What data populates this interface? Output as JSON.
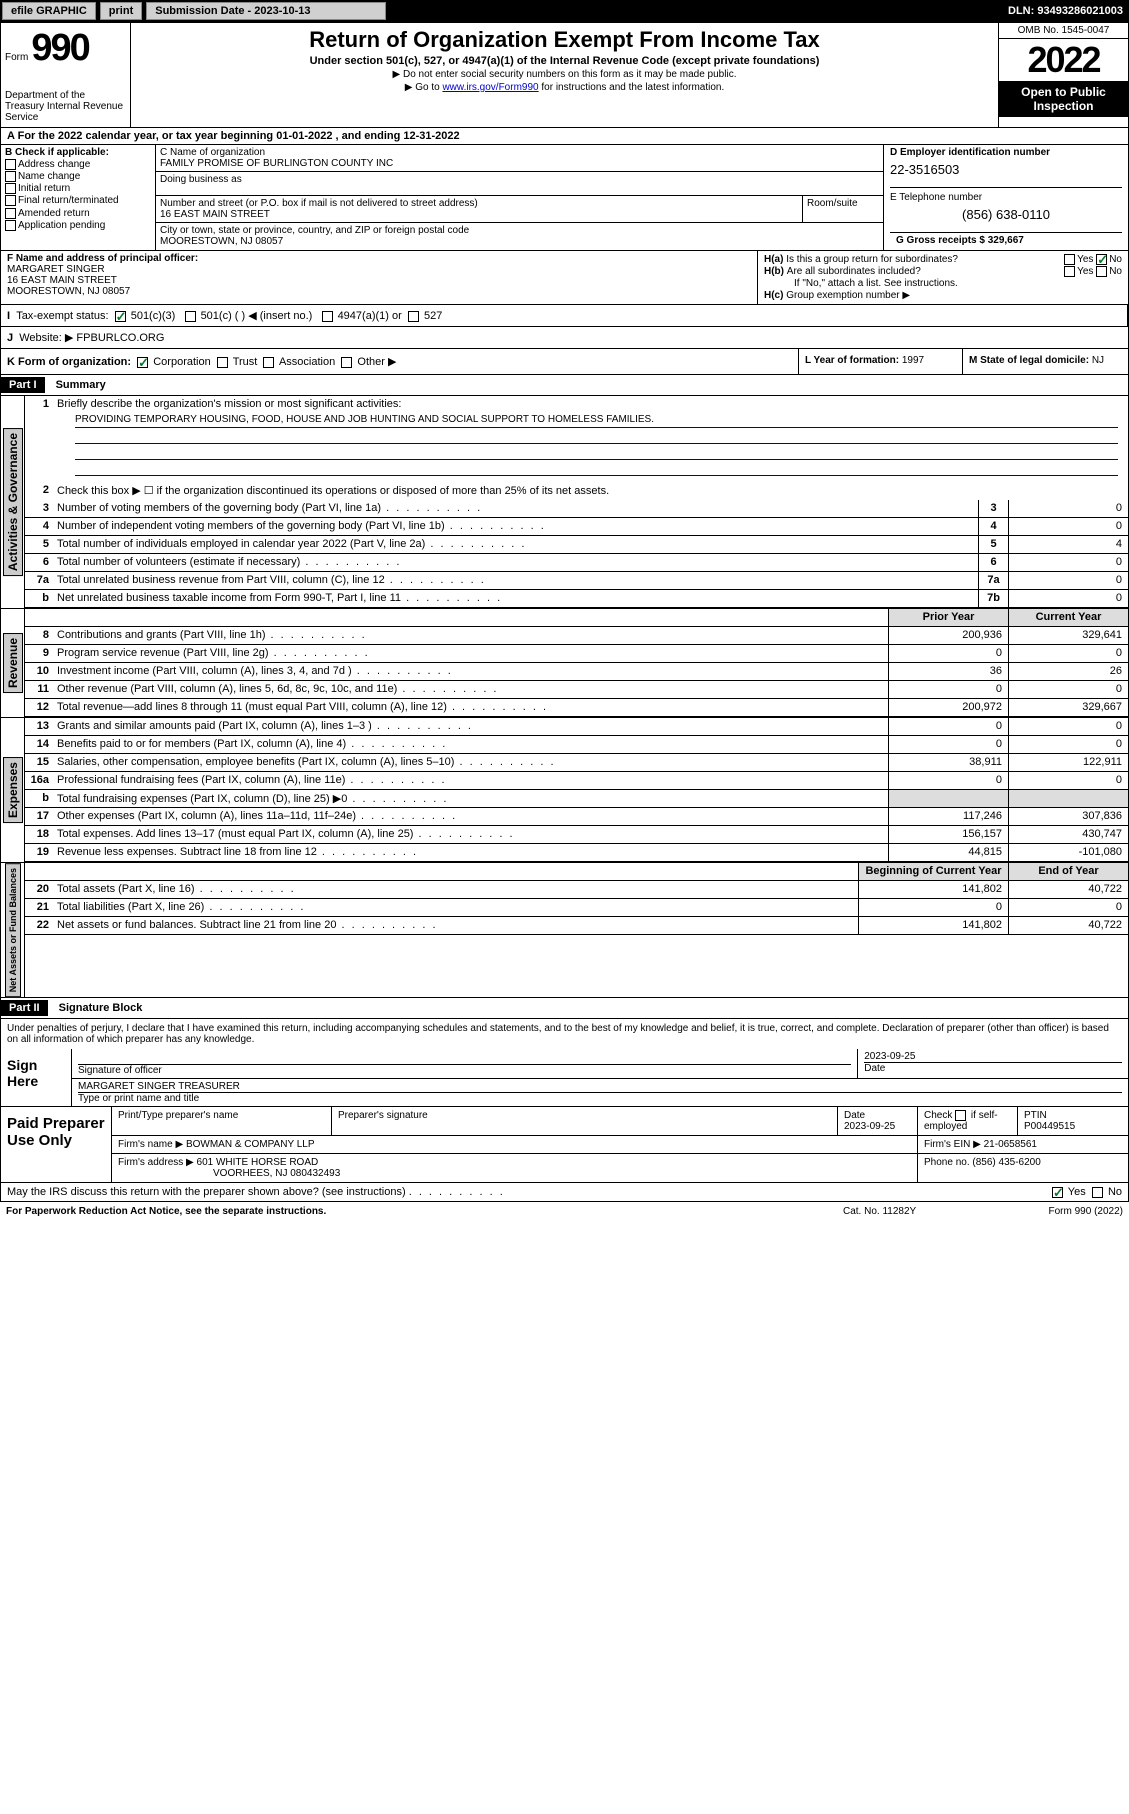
{
  "topbar": {
    "efile": "efile GRAPHIC",
    "print": "print",
    "submission_label": "Submission Date - 2023-10-13",
    "dln": "DLN: 93493286021003"
  },
  "header": {
    "form_word": "Form",
    "form_num": "990",
    "dept": "Department of the Treasury Internal Revenue Service",
    "title": "Return of Organization Exempt From Income Tax",
    "subtitle": "Under section 501(c), 527, or 4947(a)(1) of the Internal Revenue Code (except private foundations)",
    "note1": "Do not enter social security numbers on this form as it may be made public.",
    "note2_pre": "Go to ",
    "note2_link": "www.irs.gov/Form990",
    "note2_post": " for instructions and the latest information.",
    "omb": "OMB No. 1545-0047",
    "year": "2022",
    "open": "Open to Public Inspection"
  },
  "a": {
    "text_pre": "For the 2022 calendar year, or tax year beginning ",
    "begin": "01-01-2022",
    "mid": " , and ending ",
    "end": "12-31-2022"
  },
  "b": {
    "label": "B Check if applicable:",
    "opts": [
      "Address change",
      "Name change",
      "Initial return",
      "Final return/terminated",
      "Amended return",
      "Application pending"
    ]
  },
  "c": {
    "name_label": "C Name of organization",
    "name": "FAMILY PROMISE OF BURLINGTON COUNTY INC",
    "dba_label": "Doing business as",
    "street_label": "Number and street (or P.O. box if mail is not delivered to street address)",
    "street": "16 EAST MAIN STREET",
    "room_label": "Room/suite",
    "city_label": "City or town, state or province, country, and ZIP or foreign postal code",
    "city": "MOORESTOWN, NJ  08057"
  },
  "d": {
    "label": "D Employer identification number",
    "value": "22-3516503"
  },
  "e": {
    "label": "E Telephone number",
    "value": "(856) 638-0110"
  },
  "g": {
    "label": "G Gross receipts $",
    "value": "329,667"
  },
  "f": {
    "label": "F Name and address of principal officer:",
    "name": "MARGARET SINGER",
    "street": "16 EAST MAIN STREET",
    "city": "MOORESTOWN, NJ  08057"
  },
  "h": {
    "a": "Is this a group return for subordinates?",
    "a_yes": "Yes",
    "a_no": "No",
    "b": "Are all subordinates included?",
    "b_note": "If \"No,\" attach a list. See instructions.",
    "c": "Group exemption number ▶"
  },
  "i": {
    "label": "Tax-exempt status:",
    "opt1": "501(c)(3)",
    "opt2": "501(c) (   ) ◀ (insert no.)",
    "opt3": "4947(a)(1) or",
    "opt4": "527"
  },
  "j": {
    "label": "Website: ▶",
    "value": "FPBURLCO.ORG"
  },
  "k": {
    "label": "K Form of organization:",
    "opts": [
      "Corporation",
      "Trust",
      "Association",
      "Other ▶"
    ]
  },
  "l": {
    "label": "L Year of formation:",
    "value": "1997"
  },
  "m": {
    "label": "M State of legal domicile:",
    "value": "NJ"
  },
  "part1": {
    "hdr": "Part I",
    "title": "Summary"
  },
  "summary": {
    "line1_label": "Briefly describe the organization's mission or most significant activities:",
    "mission": "PROVIDING TEMPORARY HOUSING, FOOD, HOUSE AND JOB HUNTING AND SOCIAL SUPPORT TO HOMELESS FAMILIES.",
    "line2": "Check this box ▶ ☐ if the organization discontinued its operations or disposed of more than 25% of its net assets.",
    "lines": [
      {
        "n": "3",
        "t": "Number of voting members of the governing body (Part VI, line 1a)",
        "box": "3",
        "v": "0"
      },
      {
        "n": "4",
        "t": "Number of independent voting members of the governing body (Part VI, line 1b)",
        "box": "4",
        "v": "0"
      },
      {
        "n": "5",
        "t": "Total number of individuals employed in calendar year 2022 (Part V, line 2a)",
        "box": "5",
        "v": "4"
      },
      {
        "n": "6",
        "t": "Total number of volunteers (estimate if necessary)",
        "box": "6",
        "v": "0"
      },
      {
        "n": "7a",
        "t": "Total unrelated business revenue from Part VIII, column (C), line 12",
        "box": "7a",
        "v": "0"
      },
      {
        "n": "b",
        "t": "Net unrelated business taxable income from Form 990-T, Part I, line 11",
        "box": "7b",
        "v": "0"
      }
    ],
    "col_prior": "Prior Year",
    "col_current": "Current Year",
    "revenue": [
      {
        "n": "8",
        "t": "Contributions and grants (Part VIII, line 1h)",
        "p": "200,936",
        "c": "329,641"
      },
      {
        "n": "9",
        "t": "Program service revenue (Part VIII, line 2g)",
        "p": "0",
        "c": "0"
      },
      {
        "n": "10",
        "t": "Investment income (Part VIII, column (A), lines 3, 4, and 7d )",
        "p": "36",
        "c": "26"
      },
      {
        "n": "11",
        "t": "Other revenue (Part VIII, column (A), lines 5, 6d, 8c, 9c, 10c, and 11e)",
        "p": "0",
        "c": "0"
      },
      {
        "n": "12",
        "t": "Total revenue—add lines 8 through 11 (must equal Part VIII, column (A), line 12)",
        "p": "200,972",
        "c": "329,667"
      }
    ],
    "expenses": [
      {
        "n": "13",
        "t": "Grants and similar amounts paid (Part IX, column (A), lines 1–3 )",
        "p": "0",
        "c": "0"
      },
      {
        "n": "14",
        "t": "Benefits paid to or for members (Part IX, column (A), line 4)",
        "p": "0",
        "c": "0"
      },
      {
        "n": "15",
        "t": "Salaries, other compensation, employee benefits (Part IX, column (A), lines 5–10)",
        "p": "38,911",
        "c": "122,911"
      },
      {
        "n": "16a",
        "t": "Professional fundraising fees (Part IX, column (A), line 11e)",
        "p": "0",
        "c": "0"
      },
      {
        "n": "b",
        "t": "Total fundraising expenses (Part IX, column (D), line 25) ▶0",
        "p": "",
        "c": ""
      },
      {
        "n": "17",
        "t": "Other expenses (Part IX, column (A), lines 11a–11d, 11f–24e)",
        "p": "117,246",
        "c": "307,836"
      },
      {
        "n": "18",
        "t": "Total expenses. Add lines 13–17 (must equal Part IX, column (A), line 25)",
        "p": "156,157",
        "c": "430,747"
      },
      {
        "n": "19",
        "t": "Revenue less expenses. Subtract line 18 from line 12",
        "p": "44,815",
        "c": "-101,080"
      }
    ],
    "col_begin": "Beginning of Current Year",
    "col_end": "End of Year",
    "netassets": [
      {
        "n": "20",
        "t": "Total assets (Part X, line 16)",
        "p": "141,802",
        "c": "40,722"
      },
      {
        "n": "21",
        "t": "Total liabilities (Part X, line 26)",
        "p": "0",
        "c": "0"
      },
      {
        "n": "22",
        "t": "Net assets or fund balances. Subtract line 21 from line 20",
        "p": "141,802",
        "c": "40,722"
      }
    ]
  },
  "vtabs": {
    "gov": "Activities & Governance",
    "rev": "Revenue",
    "exp": "Expenses",
    "net": "Net Assets or Fund Balances"
  },
  "part2": {
    "hdr": "Part II",
    "title": "Signature Block"
  },
  "sig": {
    "penalty": "Under penalties of perjury, I declare that I have examined this return, including accompanying schedules and statements, and to the best of my knowledge and belief, it is true, correct, and complete. Declaration of preparer (other than officer) is based on all information of which preparer has any knowledge.",
    "here": "Sign Here",
    "sig_officer": "Signature of officer",
    "date": "2023-09-25",
    "date_label": "Date",
    "name_title": "MARGARET SINGER  TREASURER",
    "name_label": "Type or print name and title"
  },
  "paid": {
    "label": "Paid Preparer Use Only",
    "h1": "Print/Type preparer's name",
    "h2": "Preparer's signature",
    "h3": "Date",
    "date": "2023-09-25",
    "h4_pre": "Check",
    "h4_post": "if self-employed",
    "h5": "PTIN",
    "ptin": "P00449515",
    "firm_name_l": "Firm's name    ▶",
    "firm_name": "BOWMAN & COMPANY LLP",
    "firm_ein_l": "Firm's EIN ▶",
    "firm_ein": "21-0658561",
    "firm_addr_l": "Firm's address ▶",
    "firm_addr1": "601 WHITE HORSE ROAD",
    "firm_addr2": "VOORHEES, NJ  080432493",
    "phone_l": "Phone no.",
    "phone": "(856) 435-6200"
  },
  "discuss": {
    "q": "May the IRS discuss this return with the preparer shown above? (see instructions)",
    "yes": "Yes",
    "no": "No"
  },
  "footer": {
    "left": "For Paperwork Reduction Act Notice, see the separate instructions.",
    "mid": "Cat. No. 11282Y",
    "right": "Form 990 (2022)"
  }
}
